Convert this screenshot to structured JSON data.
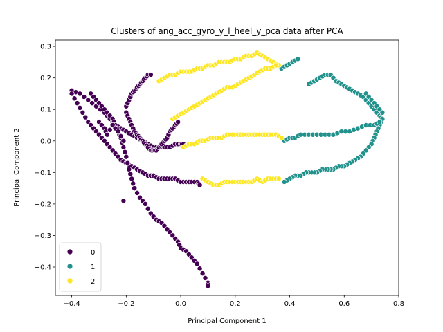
{
  "chart_data": {
    "type": "scatter",
    "title": "Clusters of ang_acc_gyro_y_l_heel_y_pca data after PCA",
    "xlabel": "Principal Component 1",
    "ylabel": "Principal Component 2",
    "xlim": [
      -0.46,
      0.8
    ],
    "ylim": [
      -0.49,
      0.32
    ],
    "xticks": [
      -0.4,
      -0.2,
      0.0,
      0.2,
      0.4,
      0.6,
      0.8
    ],
    "xtick_labels": [
      "−0.4",
      "−0.2",
      "0.0",
      "0.2",
      "0.4",
      "0.6",
      "0.8"
    ],
    "yticks": [
      -0.4,
      -0.3,
      -0.2,
      -0.1,
      0.0,
      0.1,
      0.2,
      0.3
    ],
    "ytick_labels": [
      "−0.4",
      "−0.3",
      "−0.2",
      "−0.1",
      "0.0",
      "0.1",
      "0.2",
      "0.3"
    ],
    "grid": false,
    "legend": {
      "position": "lower-left",
      "entries": [
        "0",
        "1",
        "2"
      ]
    },
    "colors": {
      "0": "#440154",
      "1": "#21918c",
      "2": "#fde725"
    },
    "series": [
      {
        "name": "0",
        "color": "#440154",
        "segments": [
          [
            [
              -0.4,
              0.16
            ],
            [
              -0.37,
              0.15
            ],
            [
              -0.34,
              0.13
            ],
            [
              -0.31,
              0.11
            ],
            [
              -0.28,
              0.09
            ],
            [
              -0.26,
              0.07
            ],
            [
              -0.24,
              0.05
            ],
            [
              -0.22,
              0.04
            ],
            [
              -0.2,
              0.03
            ],
            [
              -0.18,
              0.02
            ],
            [
              -0.16,
              0.01
            ],
            [
              -0.14,
              0.0
            ],
            [
              -0.12,
              -0.01
            ],
            [
              -0.1,
              -0.02
            ],
            [
              -0.08,
              -0.02
            ],
            [
              -0.06,
              -0.02
            ],
            [
              -0.04,
              -0.02
            ],
            [
              -0.02,
              -0.01
            ],
            [
              0.0,
              -0.01
            ],
            [
              0.01,
              -0.01
            ]
          ],
          [
            [
              -0.4,
              0.15
            ],
            [
              -0.38,
              0.12
            ],
            [
              -0.36,
              0.09
            ],
            [
              -0.34,
              0.06
            ],
            [
              -0.32,
              0.04
            ],
            [
              -0.3,
              0.02
            ],
            [
              -0.28,
              0.0
            ],
            [
              -0.26,
              -0.02
            ],
            [
              -0.24,
              -0.04
            ],
            [
              -0.22,
              -0.06
            ],
            [
              -0.2,
              -0.07
            ],
            [
              -0.18,
              -0.08
            ],
            [
              -0.16,
              -0.09
            ],
            [
              -0.14,
              -0.1
            ],
            [
              -0.12,
              -0.11
            ],
            [
              -0.1,
              -0.11
            ],
            [
              -0.08,
              -0.12
            ],
            [
              -0.06,
              -0.12
            ],
            [
              -0.04,
              -0.12
            ],
            [
              -0.02,
              -0.12
            ],
            [
              0.0,
              -0.13
            ],
            [
              0.02,
              -0.13
            ],
            [
              0.04,
              -0.13
            ],
            [
              0.06,
              -0.13
            ],
            [
              0.07,
              -0.14
            ]
          ],
          [
            [
              -0.33,
              0.15
            ],
            [
              -0.31,
              0.13
            ],
            [
              -0.29,
              0.11
            ],
            [
              -0.27,
              0.09
            ],
            [
              -0.25,
              0.07
            ],
            [
              -0.24,
              0.05
            ],
            [
              -0.23,
              0.03
            ],
            [
              -0.22,
              0.01
            ],
            [
              -0.21,
              -0.02
            ],
            [
              -0.2,
              -0.05
            ],
            [
              -0.19,
              -0.09
            ],
            [
              -0.18,
              -0.12
            ],
            [
              -0.17,
              -0.15
            ],
            [
              -0.15,
              -0.18
            ],
            [
              -0.13,
              -0.2
            ],
            [
              -0.11,
              -0.23
            ],
            [
              -0.09,
              -0.25
            ],
            [
              -0.07,
              -0.26
            ],
            [
              -0.05,
              -0.28
            ],
            [
              -0.03,
              -0.3
            ],
            [
              -0.01,
              -0.32
            ],
            [
              0.0,
              -0.34
            ],
            [
              0.02,
              -0.35
            ],
            [
              0.04,
              -0.37
            ],
            [
              0.06,
              -0.39
            ],
            [
              0.08,
              -0.42
            ],
            [
              0.1,
              -0.45
            ],
            [
              0.1,
              -0.46
            ]
          ],
          [
            [
              -0.2,
              0.11
            ],
            [
              -0.19,
              0.13
            ],
            [
              -0.18,
              0.15
            ],
            [
              -0.17,
              0.16
            ],
            [
              -0.16,
              0.17
            ],
            [
              -0.15,
              0.18
            ],
            [
              -0.14,
              0.19
            ],
            [
              -0.13,
              0.2
            ],
            [
              -0.12,
              0.21
            ],
            [
              -0.11,
              0.21
            ]
          ],
          [
            [
              -0.2,
              0.09
            ],
            [
              -0.19,
              0.07
            ],
            [
              -0.18,
              0.05
            ],
            [
              -0.17,
              0.03
            ],
            [
              -0.16,
              0.02
            ],
            [
              -0.15,
              0.01
            ],
            [
              -0.14,
              0.0
            ],
            [
              -0.13,
              -0.01
            ],
            [
              -0.12,
              -0.02
            ],
            [
              -0.11,
              -0.03
            ],
            [
              -0.1,
              -0.03
            ],
            [
              -0.09,
              -0.03
            ],
            [
              -0.08,
              -0.02
            ],
            [
              -0.07,
              -0.01
            ],
            [
              -0.06,
              0.0
            ],
            [
              -0.05,
              0.01
            ],
            [
              -0.04,
              0.03
            ],
            [
              -0.03,
              0.04
            ],
            [
              -0.02,
              0.05
            ],
            [
              -0.01,
              0.06
            ]
          ],
          [
            [
              -0.3,
              0.06
            ],
            [
              -0.28,
              0.04
            ],
            [
              -0.27,
              0.02
            ],
            [
              -0.25,
              0.05
            ],
            [
              -0.23,
              0.03
            ],
            [
              -0.21,
              0.0
            ]
          ],
          [
            [
              -0.21,
              -0.19
            ]
          ]
        ]
      },
      {
        "name": "1",
        "color": "#21918c",
        "segments": [
          [
            [
              0.37,
              0.23
            ],
            [
              0.39,
              0.24
            ],
            [
              0.41,
              0.25
            ],
            [
              0.43,
              0.26
            ]
          ],
          [
            [
              0.47,
              0.18
            ],
            [
              0.49,
              0.19
            ],
            [
              0.51,
              0.2
            ],
            [
              0.53,
              0.21
            ],
            [
              0.55,
              0.21
            ],
            [
              0.57,
              0.19
            ],
            [
              0.59,
              0.18
            ],
            [
              0.61,
              0.17
            ],
            [
              0.63,
              0.16
            ],
            [
              0.65,
              0.15
            ],
            [
              0.67,
              0.14
            ],
            [
              0.69,
              0.12
            ],
            [
              0.71,
              0.1
            ],
            [
              0.73,
              0.08
            ],
            [
              0.74,
              0.07
            ],
            [
              0.73,
              0.05
            ],
            [
              0.72,
              0.03
            ],
            [
              0.71,
              0.01
            ],
            [
              0.7,
              -0.01
            ],
            [
              0.68,
              -0.03
            ],
            [
              0.66,
              -0.05
            ],
            [
              0.64,
              -0.06
            ],
            [
              0.62,
              -0.07
            ],
            [
              0.6,
              -0.08
            ],
            [
              0.58,
              -0.08
            ],
            [
              0.56,
              -0.09
            ],
            [
              0.54,
              -0.09
            ],
            [
              0.52,
              -0.09
            ],
            [
              0.5,
              -0.1
            ],
            [
              0.48,
              -0.1
            ],
            [
              0.46,
              -0.1
            ],
            [
              0.44,
              -0.11
            ],
            [
              0.42,
              -0.11
            ],
            [
              0.4,
              -0.12
            ],
            [
              0.38,
              -0.13
            ]
          ],
          [
            [
              0.38,
              0.0
            ],
            [
              0.4,
              0.01
            ],
            [
              0.42,
              0.01
            ],
            [
              0.44,
              0.02
            ],
            [
              0.47,
              0.02
            ],
            [
              0.5,
              0.02
            ],
            [
              0.53,
              0.02
            ],
            [
              0.56,
              0.02
            ],
            [
              0.59,
              0.03
            ],
            [
              0.62,
              0.03
            ],
            [
              0.65,
              0.04
            ],
            [
              0.68,
              0.05
            ],
            [
              0.71,
              0.05
            ],
            [
              0.73,
              0.06
            ]
          ],
          [
            [
              0.68,
              0.15
            ],
            [
              0.7,
              0.13
            ],
            [
              0.72,
              0.11
            ],
            [
              0.74,
              0.09
            ]
          ]
        ]
      },
      {
        "name": "2",
        "color": "#fde725",
        "segments": [
          [
            [
              -0.08,
              0.19
            ],
            [
              -0.06,
              0.2
            ],
            [
              -0.04,
              0.21
            ],
            [
              -0.02,
              0.21
            ],
            [
              0.0,
              0.22
            ],
            [
              0.02,
              0.22
            ],
            [
              0.04,
              0.22
            ],
            [
              0.06,
              0.23
            ],
            [
              0.08,
              0.23
            ],
            [
              0.1,
              0.24
            ],
            [
              0.12,
              0.24
            ],
            [
              0.14,
              0.25
            ],
            [
              0.16,
              0.25
            ],
            [
              0.18,
              0.25
            ],
            [
              0.2,
              0.26
            ],
            [
              0.22,
              0.26
            ],
            [
              0.24,
              0.27
            ],
            [
              0.26,
              0.27
            ],
            [
              0.28,
              0.28
            ],
            [
              0.3,
              0.27
            ],
            [
              0.32,
              0.26
            ],
            [
              0.34,
              0.25
            ],
            [
              0.36,
              0.24
            ]
          ],
          [
            [
              -0.03,
              0.07
            ],
            [
              -0.01,
              0.08
            ],
            [
              0.01,
              0.09
            ],
            [
              0.03,
              0.1
            ],
            [
              0.05,
              0.11
            ],
            [
              0.07,
              0.12
            ],
            [
              0.09,
              0.13
            ],
            [
              0.11,
              0.14
            ],
            [
              0.13,
              0.15
            ],
            [
              0.15,
              0.16
            ],
            [
              0.17,
              0.17
            ],
            [
              0.19,
              0.17
            ],
            [
              0.21,
              0.18
            ],
            [
              0.23,
              0.19
            ],
            [
              0.25,
              0.2
            ],
            [
              0.27,
              0.21
            ],
            [
              0.29,
              0.22
            ],
            [
              0.31,
              0.23
            ],
            [
              0.33,
              0.23
            ],
            [
              0.35,
              0.24
            ]
          ],
          [
            [
              0.01,
              -0.02
            ],
            [
              0.03,
              -0.01
            ],
            [
              0.05,
              -0.01
            ],
            [
              0.07,
              0.0
            ],
            [
              0.09,
              0.0
            ],
            [
              0.11,
              0.01
            ],
            [
              0.13,
              0.01
            ],
            [
              0.15,
              0.01
            ],
            [
              0.17,
              0.02
            ],
            [
              0.19,
              0.02
            ],
            [
              0.21,
              0.02
            ],
            [
              0.23,
              0.02
            ],
            [
              0.25,
              0.02
            ],
            [
              0.27,
              0.02
            ],
            [
              0.29,
              0.02
            ],
            [
              0.31,
              0.02
            ],
            [
              0.33,
              0.02
            ],
            [
              0.35,
              0.02
            ],
            [
              0.37,
              0.01
            ]
          ],
          [
            [
              0.08,
              -0.12
            ],
            [
              0.1,
              -0.13
            ],
            [
              0.12,
              -0.14
            ],
            [
              0.14,
              -0.14
            ],
            [
              0.16,
              -0.13
            ],
            [
              0.18,
              -0.13
            ],
            [
              0.2,
              -0.13
            ],
            [
              0.22,
              -0.13
            ],
            [
              0.24,
              -0.13
            ],
            [
              0.26,
              -0.13
            ],
            [
              0.28,
              -0.12
            ],
            [
              0.3,
              -0.13
            ],
            [
              0.32,
              -0.12
            ],
            [
              0.34,
              -0.12
            ],
            [
              0.36,
              -0.12
            ]
          ]
        ]
      }
    ]
  }
}
